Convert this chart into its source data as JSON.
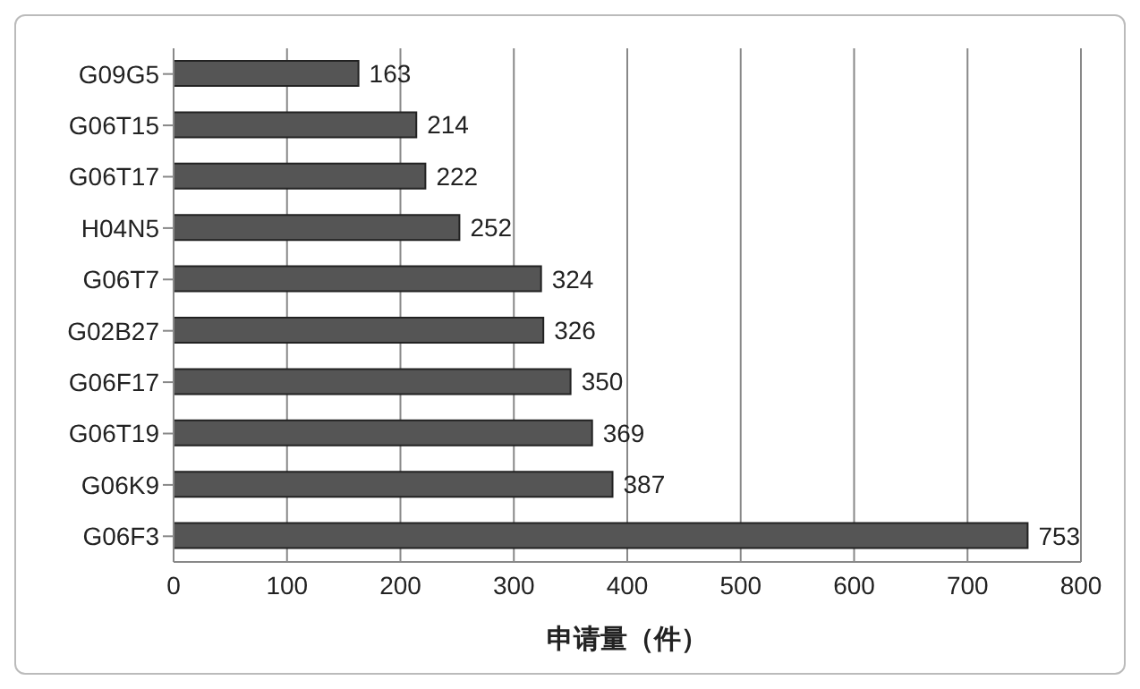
{
  "chart_data": {
    "type": "bar",
    "orientation": "horizontal",
    "xlabel": "申请量（件）",
    "categories": [
      "G09G5",
      "G06T15",
      "G06T17",
      "H04N5",
      "G06T7",
      "G02B27",
      "G06F17",
      "G06T19",
      "G06K9",
      "G06F3"
    ],
    "values": [
      163,
      214,
      222,
      252,
      324,
      326,
      350,
      369,
      387,
      753
    ],
    "color": "#555555",
    "xlim": [
      0,
      800
    ],
    "xticks": [
      0,
      100,
      200,
      300,
      400,
      500,
      600,
      700,
      800
    ],
    "grid": "x",
    "data_labels": true,
    "legend": false
  }
}
